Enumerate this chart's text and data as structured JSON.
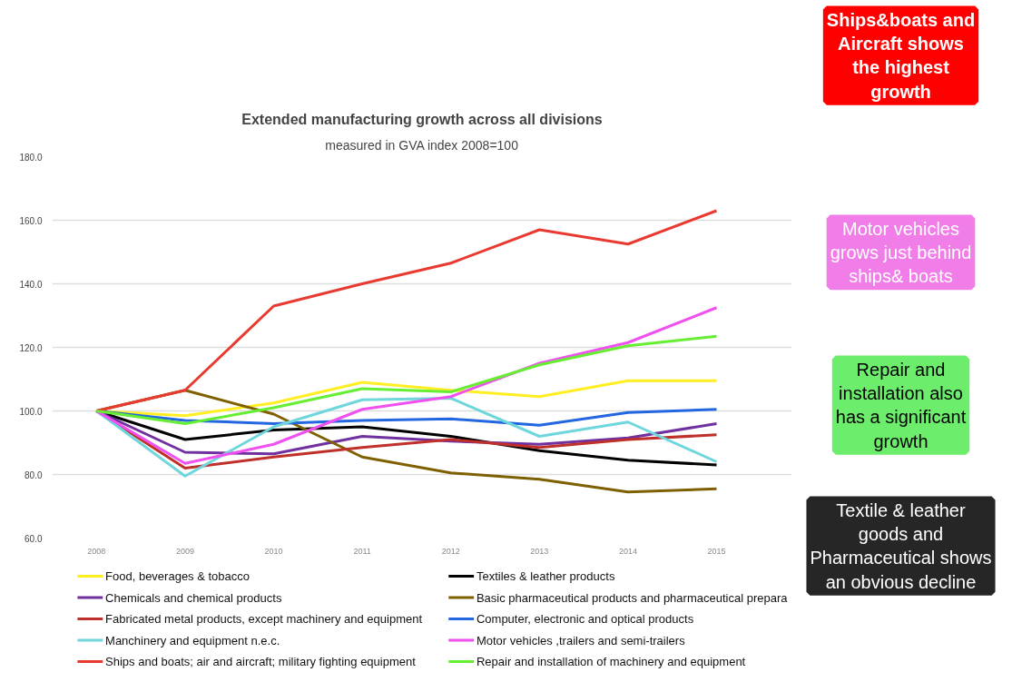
{
  "chart_data": {
    "type": "line",
    "title": "Extended manufacturing growth across all divisions",
    "subtitle": "measured in GVA index 2008=100",
    "x": [
      2008,
      2009,
      2010,
      2011,
      2012,
      2013,
      2014,
      2015
    ],
    "xlim": [
      2007.5,
      2015.85
    ],
    "xticks": [
      2008,
      2009,
      2010,
      2011,
      2012,
      2013,
      2014,
      2015
    ],
    "ylim": [
      60,
      180
    ],
    "yticks": [
      {
        "value": 60,
        "label": "60.0"
      },
      {
        "value": 80,
        "label": "80.0"
      },
      {
        "value": 100,
        "label": "100.0"
      },
      {
        "value": 120,
        "label": "120.0"
      },
      {
        "value": 140,
        "label": "140.0"
      },
      {
        "value": 160,
        "label": "160.0"
      },
      {
        "value": 180,
        "label": "180.0"
      }
    ],
    "grid": "y",
    "legend": "bottom",
    "marker": "none",
    "line_style": "solid",
    "series": [
      {
        "name": "Food, beverages & tobacco",
        "color": "#ffee22",
        "values": [
          100,
          98.5,
          102.5,
          109,
          106.5,
          104.5,
          109.5,
          109.5
        ]
      },
      {
        "name": "Textiles & leather products",
        "color": "#000000",
        "values": [
          100,
          91,
          94,
          95,
          92,
          87.5,
          84.5,
          83
        ]
      },
      {
        "name": "Chemicals and chemical products",
        "color": "#7030a0",
        "values": [
          100,
          87,
          86.5,
          92,
          90.5,
          89.5,
          91.5,
          96
        ]
      },
      {
        "name": "Basic pharmaceutical products and pharmaceutical prepara",
        "color": "#7f6000",
        "values": [
          100,
          106.5,
          99,
          85.5,
          80.5,
          78.5,
          74.5,
          75.5
        ]
      },
      {
        "name": "Fabricated metal products, except machinery and equipment",
        "color": "#c0302a",
        "values": [
          100,
          82,
          85.5,
          88.5,
          91,
          88.5,
          91,
          92.5
        ]
      },
      {
        "name": "Computer, electronic and optical products",
        "color": "#2266e0",
        "values": [
          100,
          97,
          96,
          97,
          97.5,
          95.5,
          99.5,
          100.5
        ]
      },
      {
        "name": "Manchinery and equipment n.e.c.",
        "color": "#6fd6dc",
        "values": [
          100,
          79.5,
          95,
          103.5,
          104,
          92,
          96.5,
          84
        ]
      },
      {
        "name": "Motor vehicles ,trailers and semi-trailers",
        "color": "#f050f0",
        "values": [
          100,
          83.5,
          89.5,
          100.5,
          104.5,
          115,
          121.5,
          132.5
        ]
      },
      {
        "name": "Ships and boats; air and aircraft; military fighting equipment",
        "color": "#e83a30",
        "values": [
          100,
          106.5,
          133,
          140,
          146.5,
          157,
          152.5,
          163
        ]
      },
      {
        "name": "Repair and installation of machinery and equipment",
        "color": "#66ee33",
        "values": [
          100,
          96,
          101,
          107,
          106,
          114.5,
          120.5,
          123.5
        ]
      }
    ],
    "annotations": [
      "Ships&boats and Aircraft shows the highest growth",
      "Motor vehicles grows just behind ships& boats",
      "Repair and installation also has a significant growth",
      "Textile & leather goods and Pharmaceutical shows an obvious decline"
    ]
  }
}
